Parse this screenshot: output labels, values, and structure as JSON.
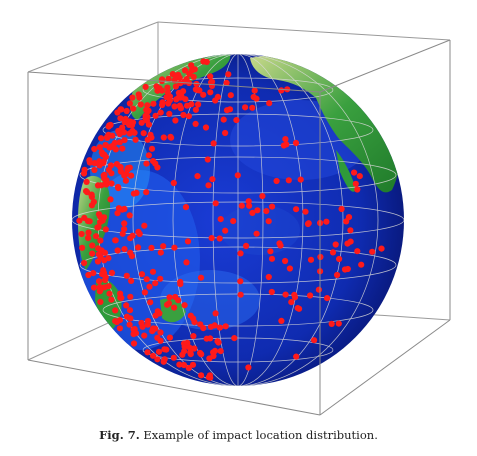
{
  "figure": {
    "caption_label": "Fig. 7.",
    "caption_text": "Example of impact location distribution.",
    "colors": {
      "ocean_deep": "#0a1a8c",
      "ocean_mid": "#1a3cd6",
      "ocean_shallow": "#2aa0ff",
      "land": "#2f9a3a",
      "land_high": "#c8d88a",
      "impact": "#ff1a1a",
      "box": "#8a8a8a"
    }
  }
}
